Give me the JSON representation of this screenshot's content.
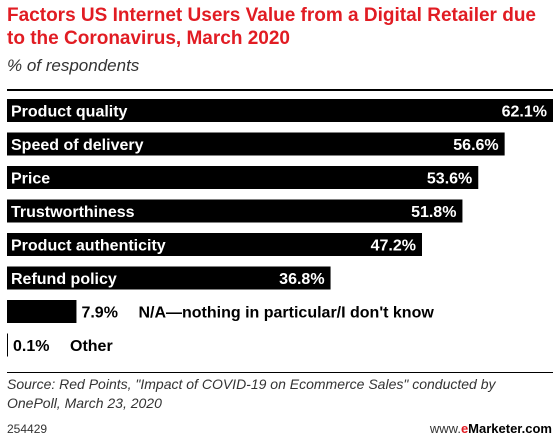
{
  "header": {
    "title": "Factors US Internet Users Value from a Digital Retailer due to the Coronavirus, March 2020",
    "subtitle": "% of respondents"
  },
  "chart_data": {
    "type": "bar",
    "orientation": "horizontal",
    "categories": [
      "Product quality",
      "Speed of delivery",
      "Price",
      "Trustworthiness",
      "Product authenticity",
      "Refund policy",
      "N/A—nothing in particular/I don't know",
      "Other"
    ],
    "values": [
      62.1,
      56.6,
      53.6,
      51.8,
      47.2,
      36.8,
      7.9,
      0.1
    ],
    "value_labels": [
      "62.1%",
      "56.6%",
      "53.6%",
      "51.8%",
      "47.2%",
      "36.8%",
      "7.9%",
      "0.1%"
    ],
    "xlim": [
      0,
      62.1
    ],
    "bar_color": "#000000",
    "grid": false
  },
  "footer": {
    "source": "Source: Red Points, \"Impact of COVID-19 on Ecommerce Sales\" conducted by OnePoll, March 23, 2020",
    "chart_id": "254429",
    "brand_prefix": "www.",
    "brand_e": "e",
    "brand_rest": "Marketer.com"
  },
  "colors": {
    "title": "#e11c23",
    "bar": "#000000"
  }
}
